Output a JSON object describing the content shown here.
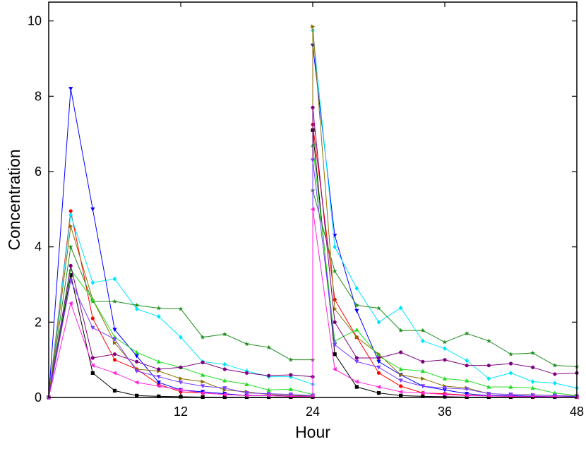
{
  "chart_data": {
    "type": "line",
    "x_label": "Hour",
    "y_label": "Concentration",
    "x": [
      0,
      2,
      4,
      6,
      8,
      10,
      12,
      14,
      16,
      18,
      20,
      22,
      24,
      24,
      26,
      28,
      30,
      32,
      34,
      36,
      38,
      40,
      42,
      44,
      46,
      48
    ],
    "xlim": [
      0,
      48
    ],
    "xticks": [
      12,
      24,
      36,
      48
    ],
    "ylim": [
      0,
      10.5
    ],
    "yticks": [
      0,
      2,
      4,
      6,
      8,
      10
    ],
    "grid": false,
    "series": [
      {
        "color": "#000000",
        "marker": "square",
        "values": [
          0,
          3.25,
          0.65,
          0.18,
          0.05,
          0.03,
          0.02,
          0.01,
          0.01,
          0.01,
          0.01,
          0.01,
          0.01,
          7.1,
          1.15,
          0.28,
          0.12,
          0.05,
          0.03,
          0.02,
          0.01,
          0.01,
          0.01,
          0.01,
          0.01,
          0.01
        ]
      },
      {
        "color": "#ff0000",
        "marker": "circle",
        "values": [
          0,
          4.95,
          2.1,
          1.0,
          0.75,
          0.35,
          0.15,
          0.12,
          0.08,
          0.05,
          0.05,
          0.03,
          0.03,
          7.25,
          2.6,
          1.6,
          0.65,
          0.3,
          0.12,
          0.1,
          0.06,
          0.04,
          0.03,
          0.02,
          0.02,
          0.01
        ]
      },
      {
        "color": "#0000ff",
        "marker": "triangle-down",
        "values": [
          0,
          8.2,
          5.0,
          1.8,
          1.1,
          0.4,
          0.2,
          0.15,
          0.1,
          0.05,
          0.05,
          0.05,
          0.05,
          9.35,
          4.3,
          2.3,
          0.95,
          0.6,
          0.3,
          0.2,
          0.1,
          0.05,
          0.05,
          0.03,
          0.02,
          0.02
        ]
      },
      {
        "color": "#00e5ff",
        "marker": "diamond",
        "values": [
          0,
          4.85,
          3.05,
          3.15,
          2.35,
          2.15,
          1.6,
          0.95,
          0.88,
          0.7,
          0.55,
          0.55,
          0.35,
          9.75,
          4.0,
          2.9,
          2.0,
          2.38,
          1.5,
          1.3,
          0.98,
          0.5,
          0.65,
          0.42,
          0.38,
          0.25
        ]
      },
      {
        "color": "#1e8c1e",
        "marker": "star",
        "values": [
          0,
          4.0,
          2.55,
          2.55,
          2.45,
          2.37,
          2.35,
          1.6,
          1.68,
          1.42,
          1.33,
          1.0,
          1.0,
          5.5,
          3.35,
          2.45,
          2.37,
          1.78,
          1.78,
          1.47,
          1.7,
          1.5,
          1.15,
          1.18,
          0.85,
          0.82
        ]
      },
      {
        "color": "#8c6e00",
        "marker": "triangle-right",
        "values": [
          0,
          4.55,
          2.6,
          1.45,
          0.75,
          0.7,
          0.5,
          0.42,
          0.2,
          0.15,
          0.08,
          0.05,
          0.03,
          9.85,
          2.35,
          1.6,
          1.15,
          0.6,
          0.5,
          0.3,
          0.25,
          0.1,
          0.08,
          0.07,
          0.05,
          0.04
        ]
      },
      {
        "color": "#22dd22",
        "marker": "triangle-up",
        "values": [
          0,
          3.4,
          2.6,
          1.6,
          1.2,
          0.95,
          0.8,
          0.6,
          0.45,
          0.35,
          0.2,
          0.22,
          0.08,
          6.7,
          1.5,
          1.8,
          1.1,
          0.75,
          0.7,
          0.5,
          0.45,
          0.28,
          0.28,
          0.25,
          0.12,
          0.05
        ]
      },
      {
        "color": "#800080",
        "marker": "circle",
        "values": [
          0,
          3.5,
          1.05,
          1.15,
          0.95,
          0.75,
          0.8,
          0.93,
          0.75,
          0.65,
          0.58,
          0.6,
          0.55,
          7.7,
          2.0,
          1.05,
          1.05,
          1.2,
          0.95,
          1.0,
          0.85,
          0.85,
          0.9,
          0.8,
          0.62,
          0.65
        ]
      },
      {
        "color": "#7a3cff",
        "marker": "triangle-down",
        "values": [
          0,
          3.1,
          1.85,
          1.55,
          0.7,
          0.55,
          0.4,
          0.3,
          0.25,
          0.12,
          0.1,
          0.08,
          0.05,
          6.3,
          1.4,
          0.95,
          0.8,
          0.45,
          0.3,
          0.25,
          0.22,
          0.1,
          0.08,
          0.06,
          0.05,
          0.03
        ]
      },
      {
        "color": "#ff22dd",
        "marker": "triangle-left",
        "values": [
          0,
          2.5,
          0.85,
          0.65,
          0.4,
          0.3,
          0.2,
          0.12,
          0.08,
          0.05,
          0.05,
          0.03,
          0.02,
          5.0,
          0.75,
          0.42,
          0.28,
          0.15,
          0.12,
          0.08,
          0.05,
          0.04,
          0.03,
          0.02,
          0.02,
          0.01
        ]
      }
    ]
  }
}
